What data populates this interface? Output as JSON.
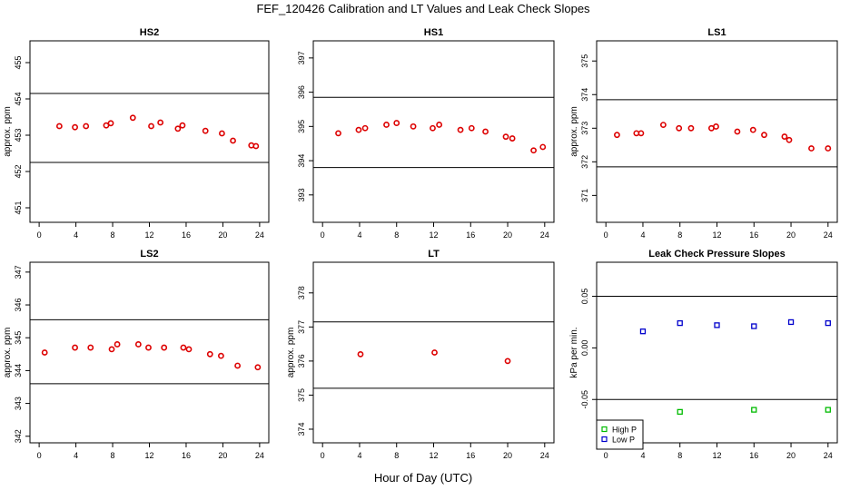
{
  "figure": {
    "title": "FEF_120426  Calibration and LT Values and Leak Check Slopes",
    "xlabel": "Hour of Day (UTC)"
  },
  "chart_data": [
    {
      "type": "scatter",
      "title": "HS2",
      "ylabel": "approx. ppm",
      "xlim": [
        -1,
        25
      ],
      "ylim": [
        450.6,
        455.6
      ],
      "xticks": [
        "0",
        "4",
        "8",
        "12",
        "16",
        "20",
        "24"
      ],
      "yticks": [
        "451",
        "452",
        "453",
        "454",
        "455"
      ],
      "hlines": [
        454.15,
        452.25
      ],
      "series": [
        {
          "color": "#dd0000",
          "marker": "circle",
          "x": [
            2.2,
            3.9,
            5.1,
            7.3,
            7.8,
            10.2,
            12.2,
            13.2,
            15.1,
            15.6,
            18.1,
            19.9,
            21.1,
            23.1,
            23.6
          ],
          "y": [
            453.25,
            453.22,
            453.25,
            453.27,
            453.33,
            453.48,
            453.25,
            453.35,
            453.18,
            453.27,
            453.12,
            453.05,
            452.85,
            452.72,
            452.7
          ]
        }
      ]
    },
    {
      "type": "scatter",
      "title": "HS1",
      "ylabel": "",
      "xlim": [
        -1,
        25
      ],
      "ylim": [
        392.2,
        397.5
      ],
      "xticks": [
        "0",
        "4",
        "8",
        "12",
        "16",
        "20",
        "24"
      ],
      "yticks": [
        "393",
        "394",
        "395",
        "396",
        "397"
      ],
      "hlines": [
        395.85,
        393.8
      ],
      "series": [
        {
          "color": "#dd0000",
          "marker": "circle",
          "x": [
            1.7,
            3.9,
            4.6,
            6.9,
            8.0,
            9.8,
            11.9,
            12.6,
            14.9,
            16.1,
            17.6,
            19.8,
            20.5,
            22.8,
            23.8
          ],
          "y": [
            394.8,
            394.9,
            394.95,
            395.05,
            395.1,
            395.0,
            394.95,
            395.05,
            394.9,
            394.95,
            394.85,
            394.7,
            394.65,
            394.3,
            394.4
          ]
        }
      ]
    },
    {
      "type": "scatter",
      "title": "LS1",
      "ylabel": "approx. ppm",
      "xlim": [
        -1,
        25
      ],
      "ylim": [
        370.2,
        375.6
      ],
      "xticks": [
        "0",
        "4",
        "8",
        "12",
        "16",
        "20",
        "24"
      ],
      "yticks": [
        "371",
        "372",
        "373",
        "374",
        "375"
      ],
      "hlines": [
        373.85,
        371.85
      ],
      "series": [
        {
          "color": "#dd0000",
          "marker": "circle",
          "x": [
            1.2,
            3.3,
            3.8,
            6.2,
            7.9,
            9.2,
            11.4,
            11.9,
            14.2,
            15.9,
            17.1,
            19.3,
            19.8,
            22.2,
            24.0
          ],
          "y": [
            372.8,
            372.85,
            372.85,
            373.1,
            373.0,
            373.0,
            373.0,
            373.05,
            372.9,
            372.95,
            372.8,
            372.75,
            372.65,
            372.4,
            372.4
          ]
        }
      ]
    },
    {
      "type": "scatter",
      "title": "LS2",
      "ylabel": "approx. ppm",
      "xlim": [
        -1,
        25
      ],
      "ylim": [
        341.8,
        347.3
      ],
      "xticks": [
        "0",
        "4",
        "8",
        "12",
        "16",
        "20",
        "24"
      ],
      "yticks": [
        "342",
        "343",
        "344",
        "345",
        "346",
        "347"
      ],
      "hlines": [
        345.55,
        343.6
      ],
      "series": [
        {
          "color": "#dd0000",
          "marker": "circle",
          "x": [
            0.6,
            3.9,
            5.6,
            7.9,
            8.5,
            10.8,
            11.9,
            13.6,
            15.7,
            16.3,
            18.6,
            19.8,
            21.6,
            23.8
          ],
          "y": [
            344.55,
            344.7,
            344.7,
            344.65,
            344.8,
            344.8,
            344.7,
            344.7,
            344.7,
            344.65,
            344.5,
            344.45,
            344.15,
            344.1
          ]
        }
      ]
    },
    {
      "type": "scatter",
      "title": "LT",
      "ylabel": "approx. ppm",
      "xlim": [
        -1,
        25
      ],
      "ylim": [
        373.6,
        378.9
      ],
      "xticks": [
        "0",
        "4",
        "8",
        "12",
        "16",
        "20",
        "24"
      ],
      "yticks": [
        "374",
        "375",
        "376",
        "377",
        "378"
      ],
      "hlines": [
        377.15,
        375.2
      ],
      "series": [
        {
          "color": "#dd0000",
          "marker": "circle",
          "x": [
            4.1,
            12.1,
            20.0
          ],
          "y": [
            376.2,
            376.25,
            376.0
          ]
        }
      ]
    },
    {
      "type": "scatter",
      "title": "Leak Check Pressure Slopes",
      "ylabel": "kPa per min.",
      "xlim": [
        -1,
        25
      ],
      "ylim": [
        -0.092,
        0.083
      ],
      "xticks": [
        "0",
        "4",
        "8",
        "12",
        "16",
        "20",
        "24"
      ],
      "yticks": [
        "-0.05",
        "0.00",
        "0.05"
      ],
      "hlines": [
        0.05,
        -0.05
      ],
      "legend": {
        "placement": "bottom-left"
      },
      "series": [
        {
          "name": "High P",
          "color": "#00bb00",
          "marker": "square",
          "x": [
            8,
            16,
            24
          ],
          "y": [
            -0.062,
            -0.06,
            -0.06
          ]
        },
        {
          "name": "Low P",
          "color": "#0000cc",
          "marker": "square",
          "x": [
            4,
            8,
            12,
            16,
            20,
            24
          ],
          "y": [
            0.016,
            0.024,
            0.022,
            0.021,
            0.025,
            0.024
          ]
        }
      ]
    }
  ]
}
